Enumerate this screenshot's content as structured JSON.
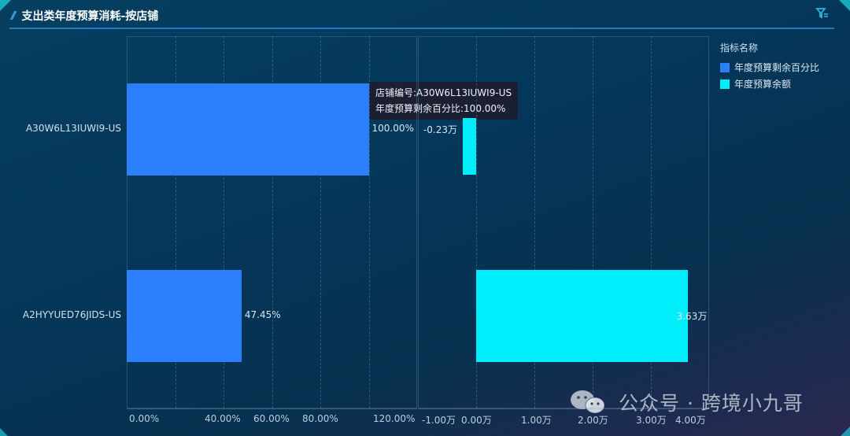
{
  "header": {
    "title": "支出类年度预算消耗-按店铺",
    "filter_icon": "filter-icon"
  },
  "legend": {
    "title": "指标名称",
    "items": [
      {
        "label": "年度预算剩余百分比",
        "color": "#2c7ffb"
      },
      {
        "label": "年度预算余额",
        "color": "#00eefc"
      }
    ]
  },
  "tooltip": {
    "line1": "店铺编号:A30W6L13IUWI9-US",
    "line2": "年度预算剩余百分比:100.00%"
  },
  "watermark": "公众号 · 跨境小九哥",
  "chart_data": [
    {
      "type": "bar",
      "orientation": "horizontal",
      "title": "支出类年度预算消耗-按店铺",
      "categories": [
        "A30W6L13IUWI9-US",
        "A2HYYUED76JIDS-US"
      ],
      "series": [
        {
          "name": "年度预算剩余百分比",
          "values": [
            100.0,
            47.45
          ],
          "labels": [
            "100.00%",
            "47.45%"
          ],
          "color": "#2c7ffb"
        }
      ],
      "xlim": [
        0,
        120
      ],
      "xticks": [
        "0.00%",
        "40.00%",
        "60.00%",
        "80.00%",
        "120.00%"
      ],
      "grid": true
    },
    {
      "type": "bar",
      "orientation": "horizontal",
      "categories": [
        "A30W6L13IUWI9-US",
        "A2HYYUED76JIDS-US"
      ],
      "series": [
        {
          "name": "年度预算余额",
          "values": [
            -0.23,
            3.63
          ],
          "labels": [
            "-0.23万",
            "3.63万"
          ],
          "unit": "万",
          "color": "#00eefc"
        }
      ],
      "xlim": [
        -1,
        4
      ],
      "xticks": [
        "-1.00万",
        "0.00万",
        "1.00万",
        "2.00万",
        "3.00万",
        "4.00万"
      ],
      "grid": true
    }
  ]
}
